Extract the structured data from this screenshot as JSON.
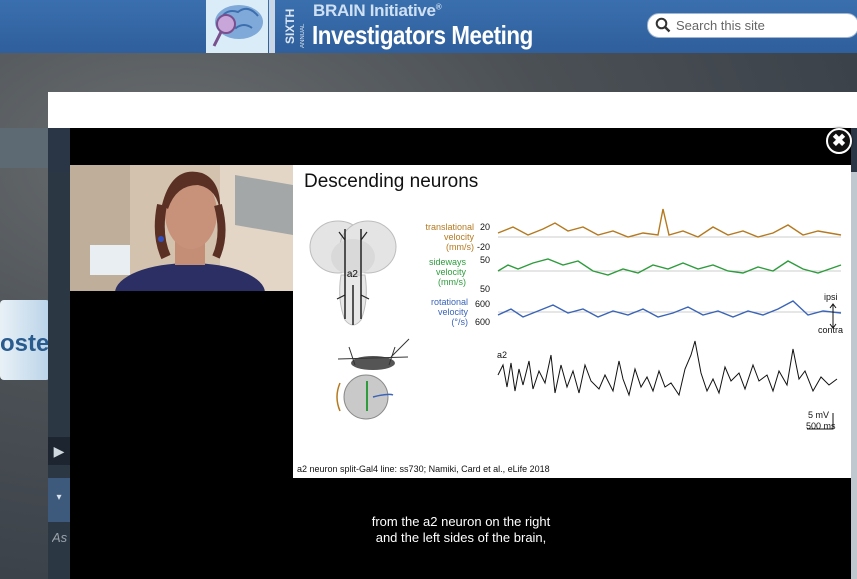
{
  "header": {
    "edition_word": "SIXTH",
    "edition_sub": "ANNUAL",
    "brand_line": "BRAIN Initiative",
    "brand_reg": "®",
    "event_title": "Investigators Meeting",
    "search": {
      "placeholder": "Search this site"
    }
  },
  "background": {
    "poster_text": "oster",
    "under_text": "As"
  },
  "modal": {
    "close_label": "✖"
  },
  "slide": {
    "title": "Descending neurons",
    "brain_label": "a2",
    "trace_label": "a2",
    "traces": [
      {
        "name": "translational velocity (mm/s)",
        "color": "#b5791f",
        "ticks": [
          "20",
          "-20"
        ]
      },
      {
        "name": "sideways velocity (mm/s)",
        "color": "#2e9c3d",
        "ticks": [
          "50",
          "50"
        ]
      },
      {
        "name": "rotational velocity (°/s)",
        "color": "#3a64b8",
        "ticks": [
          "600",
          "600"
        ]
      }
    ],
    "label_translational": "translational",
    "label_translational_2": "velocity",
    "label_translational_3": "(mm/s)",
    "label_sideways": "sideways",
    "label_sideways_2": "velocity",
    "label_sideways_3": "(mm/s)",
    "label_rotational": "rotational",
    "label_rotational_2": "velocity",
    "label_rotational_3": "(°/s)",
    "tick_t1": "20",
    "tick_t2": "-20",
    "tick_s1": "50",
    "tick_s2": "50",
    "tick_r1": "600",
    "tick_r2": "600",
    "ipsi": "ipsi",
    "contra": "contra",
    "scale_mv": "5 mV",
    "scale_ms": "500 ms",
    "credit": "a2 neuron split-Gal4 line: ss730; Namiki, Card et al., eLife 2018"
  },
  "captions": {
    "line1": "from the a2 neuron on the right",
    "line2": "and the left sides of the brain,"
  },
  "colors": {
    "header_bg": "#2f5f9c",
    "translational": "#b5791f",
    "sideways": "#2e9c3d",
    "rotational": "#3a64b8"
  }
}
